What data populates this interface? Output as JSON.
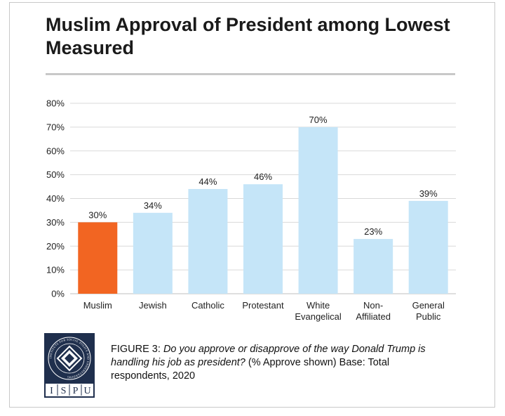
{
  "title": "Muslim Approval of President among Lowest Measured",
  "caption": {
    "figure_label": "FIGURE 3:",
    "question": "Do you approve or disapprove of the way Donald Trump is handling his job as president?",
    "note": "(% Approve shown) Base: Total respondents, 2020"
  },
  "logo": {
    "ring_text": "INSTITUTE FOR SOCIAL POLICY AND UNDERSTANDING",
    "letters": [
      "I",
      "S",
      "P",
      "U"
    ]
  },
  "colors": {
    "highlight": "#f26522",
    "bar": "#c5e5f8",
    "grid": "#d9d9d9",
    "logo_navy": "#1f2f4d"
  },
  "chart_data": {
    "type": "bar",
    "categories": [
      [
        "Muslim"
      ],
      [
        "Jewish"
      ],
      [
        "Catholic"
      ],
      [
        "Protestant"
      ],
      [
        "White",
        "Evangelical"
      ],
      [
        "Non-",
        "Affiliated"
      ],
      [
        "General",
        "Public"
      ]
    ],
    "values": [
      30,
      34,
      44,
      46,
      70,
      23,
      39
    ],
    "data_labels": [
      "30%",
      "34%",
      "44%",
      "46%",
      "70%",
      "23%",
      "39%"
    ],
    "highlight_index": 0,
    "yticks": [
      "0%",
      "10%",
      "20%",
      "30%",
      "40%",
      "50%",
      "60%",
      "70%",
      "80%"
    ],
    "ylim": [
      0,
      80
    ],
    "grid": true,
    "legend": "none"
  }
}
